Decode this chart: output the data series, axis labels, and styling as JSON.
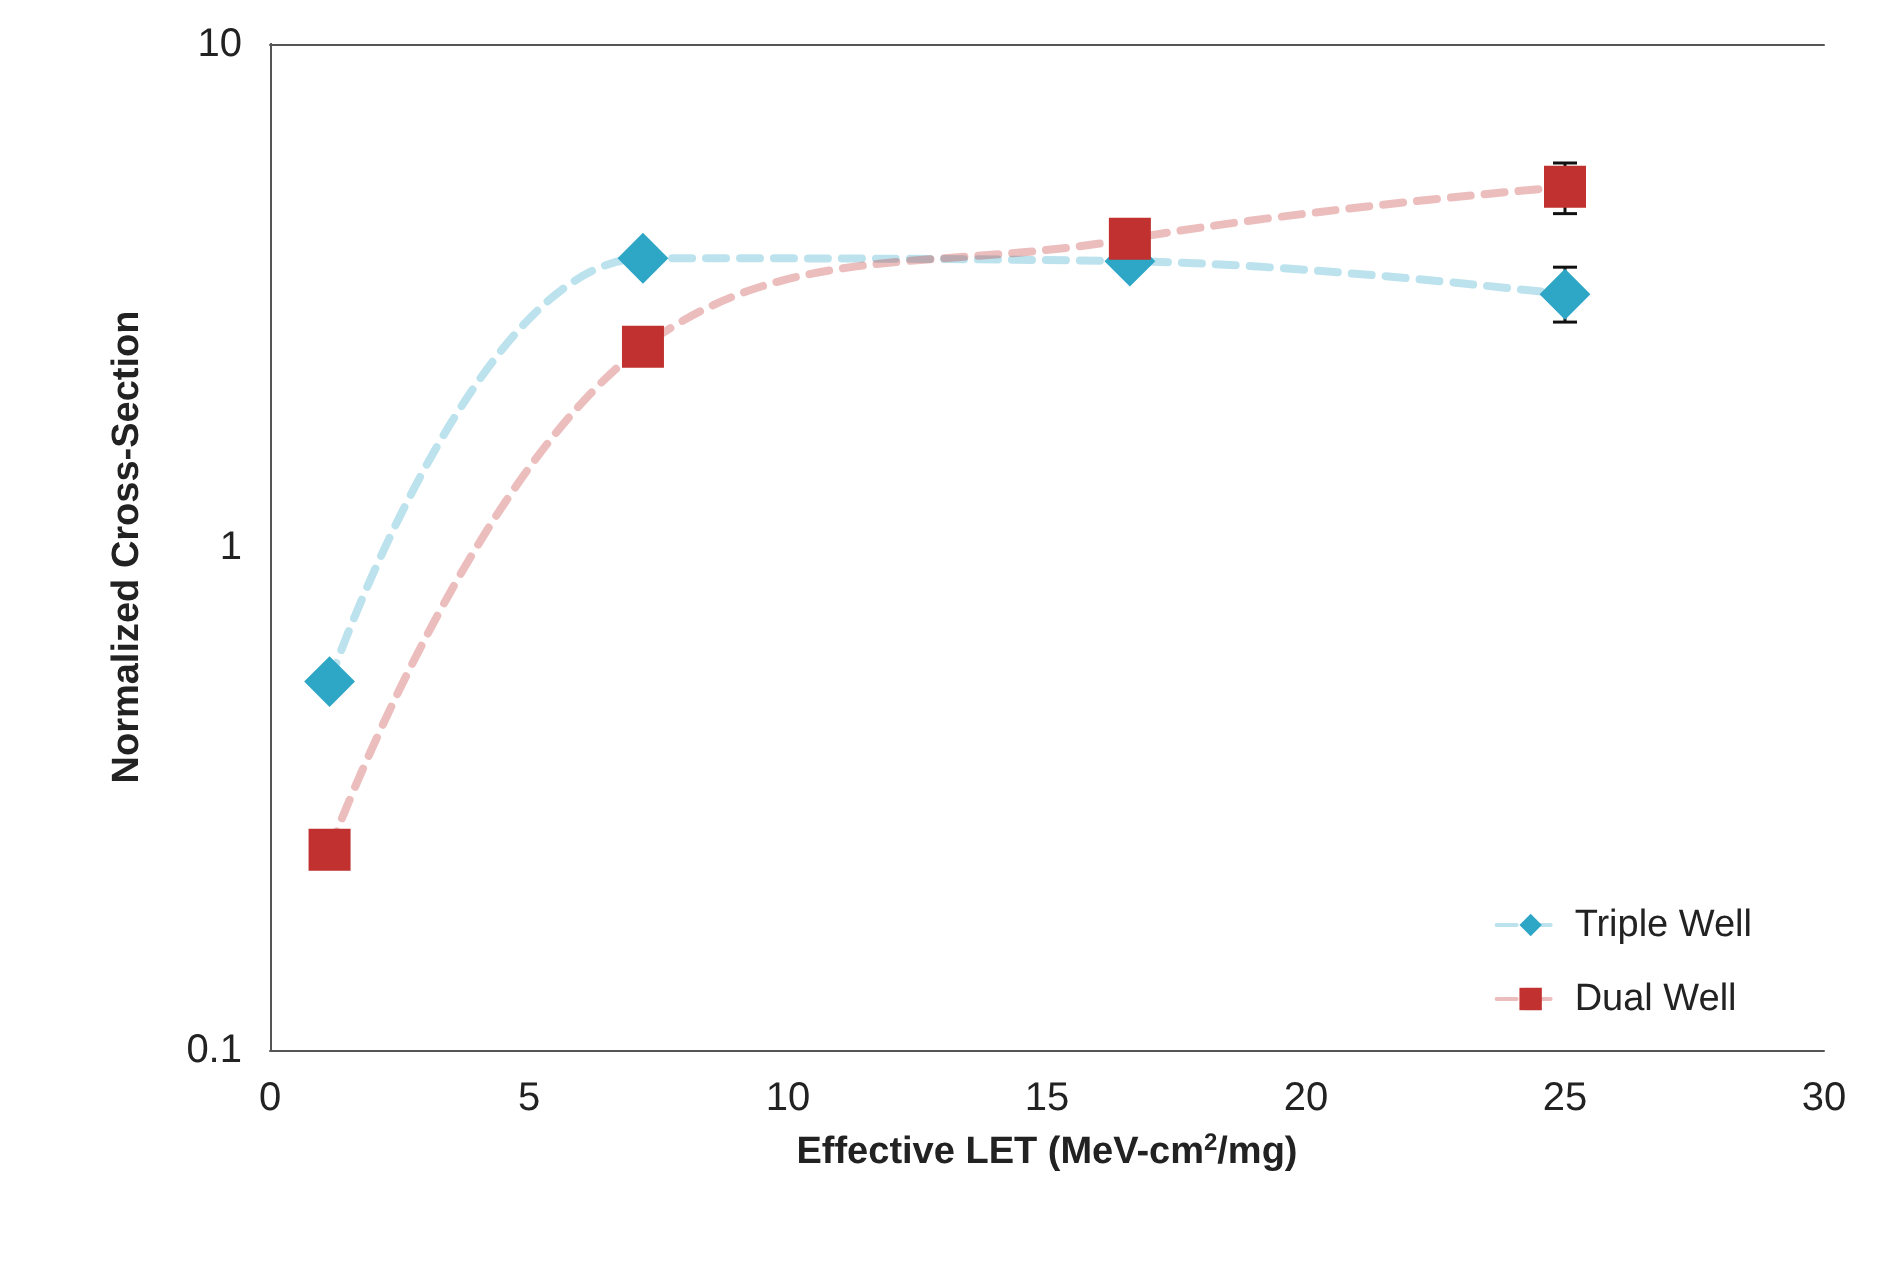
{
  "chart_data": {
    "type": "line",
    "xlabel": "Effective LET (MeV-cm$^{2}$/mg)",
    "ylabel": "Normalized Cross-Section",
    "log": "y",
    "xlim": [
      0,
      30
    ],
    "xticks": [
      0,
      5,
      10,
      15,
      20,
      25,
      30
    ],
    "ylim": [
      0.1,
      10
    ],
    "yticks": [
      0.1,
      1,
      10
    ],
    "grid": false,
    "legend": "bottom right",
    "line_style": "dashed",
    "series": [
      {
        "name": "Triple Well",
        "color": "#2ea6c6",
        "marker": "diamond",
        "x": [
          1.15,
          7.2,
          16.6,
          25
        ],
        "values": [
          0.54,
          3.75,
          3.7,
          3.18
        ],
        "errors": [
          null,
          null,
          null,
          [
            2.8,
            3.6
          ]
        ]
      },
      {
        "name": "Dual Well",
        "color": "#c0312f",
        "marker": "square",
        "x": [
          1.15,
          7.2,
          16.6,
          25
        ],
        "values": [
          0.25,
          2.5,
          4.1,
          5.2
        ],
        "errors": [
          null,
          null,
          null,
          [
            4.6,
            5.8
          ]
        ]
      }
    ]
  }
}
